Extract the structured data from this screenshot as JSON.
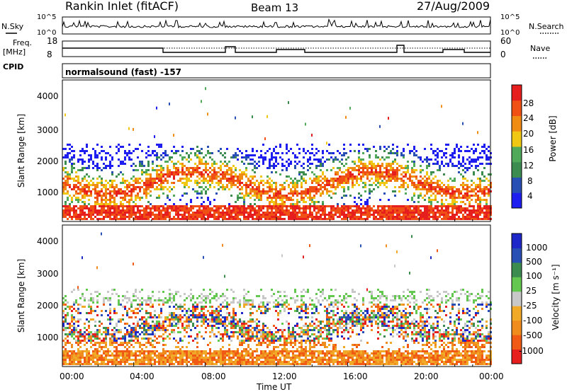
{
  "header": {
    "station": "Rankin Inlet (fitACF)",
    "beam": "Beam 13",
    "date": "27/Aug/2009"
  },
  "labels": {
    "n_sky": "N.Sky",
    "freq": "Freq.",
    "freq_unit": "[MHz]",
    "cpid": "CPID",
    "n_search": "N.Search",
    "nave": "Nave",
    "cpid_value": "normalsound (fast) -157"
  },
  "colors": {
    "power_scale": [
      "#1e1ef0",
      "#2850b4",
      "#3c8c50",
      "#50aa5a",
      "#f0c814",
      "#f08c14",
      "#f05014",
      "#e61e1e"
    ],
    "velocity_scale": [
      "#e61e1e",
      "#f05a14",
      "#f08c1e",
      "#f0aa28",
      "#c8c8c8",
      "#64c850",
      "#3c8c50",
      "#2850b4",
      "#1e28c8"
    ]
  },
  "chart_data": [
    {
      "type": "line",
      "title": "",
      "panel": "N.Sky / N.Search",
      "x_ticks": [],
      "yticks_left": [
        "10^5",
        "10^0"
      ],
      "yticks_right": [
        "10^5",
        "10^0"
      ]
    },
    {
      "type": "line",
      "panel": "Freq. / Nave",
      "yticks_left": [
        "18",
        "8"
      ],
      "yticks_right": [
        "60",
        "0"
      ]
    },
    {
      "type": "heatmap",
      "panel": "Power",
      "ylabel": "Slant Range [km]",
      "ylim": [
        180,
        4500
      ],
      "yticks": [
        "4000",
        "3000",
        "2000",
        "1000"
      ],
      "colorbar_label": "Power [dB]",
      "colorbar_ticks": [
        "28",
        "24",
        "20",
        "16",
        "12",
        "8",
        "4"
      ]
    },
    {
      "type": "heatmap",
      "panel": "Velocity",
      "ylabel": "Slant Range [km]",
      "ylim": [
        180,
        4500
      ],
      "yticks": [
        "4000",
        "3000",
        "2000",
        "1000"
      ],
      "colorbar_label": "Velocity [m s⁻¹]",
      "colorbar_ticks": [
        "1000",
        "500",
        "100",
        "25",
        "-25",
        "-100",
        "-500",
        "-1000"
      ],
      "xlabel": "Time UT",
      "xticks": [
        "00:00",
        "04:00",
        "08:00",
        "12:00",
        "16:00",
        "20:00",
        "00:00"
      ]
    }
  ]
}
